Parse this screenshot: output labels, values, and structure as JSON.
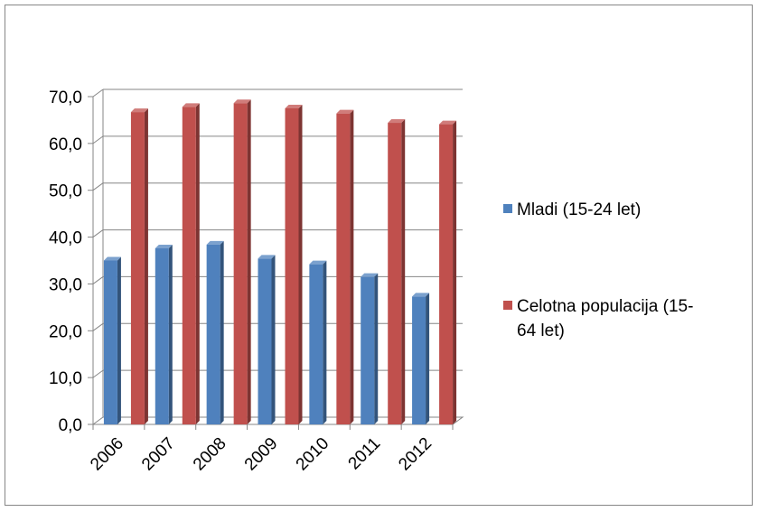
{
  "chart_data": {
    "type": "bar",
    "categories": [
      "2006",
      "2007",
      "2008",
      "2009",
      "2010",
      "2011",
      "2012"
    ],
    "series": [
      {
        "name": "Mladi (15-24 let)",
        "color": "#4F81BD",
        "values": [
          35.0,
          37.6,
          38.4,
          35.4,
          34.2,
          31.5,
          27.3
        ]
      },
      {
        "name_lines": [
          "Celotna populacija (15-",
          "64 let)"
        ],
        "color": "#C0504D",
        "values": [
          66.7,
          67.8,
          68.6,
          67.5,
          66.4,
          64.4,
          64.1
        ]
      }
    ],
    "y_ticks": [
      "0,0",
      "10,0",
      "20,0",
      "30,0",
      "40,0",
      "50,0",
      "60,0",
      "70,0"
    ],
    "ylim": [
      0,
      70
    ],
    "grid": true,
    "legend_position": "right",
    "style": "3d-clustered-column"
  }
}
